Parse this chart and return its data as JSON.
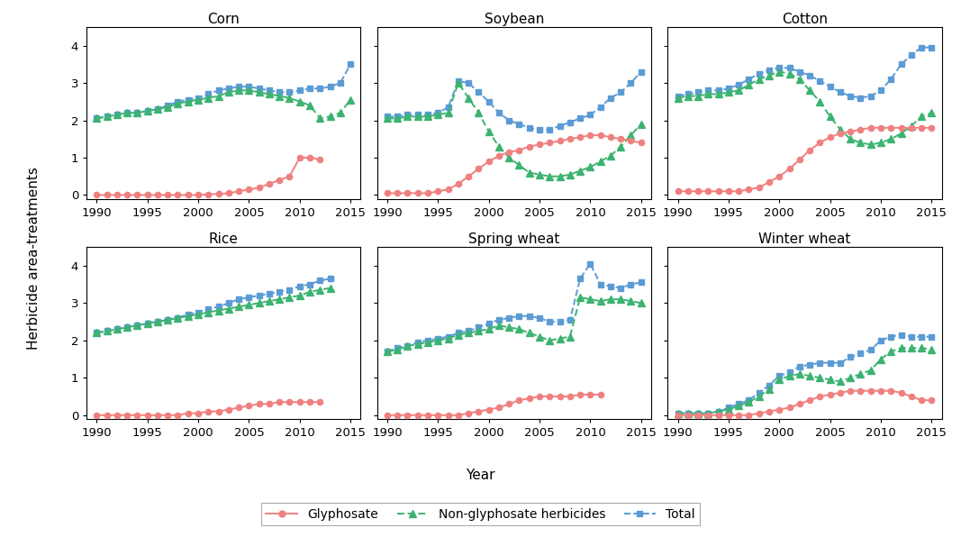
{
  "years": [
    1990,
    1991,
    1992,
    1993,
    1994,
    1995,
    1996,
    1997,
    1998,
    1999,
    2000,
    2001,
    2002,
    2003,
    2004,
    2005,
    2006,
    2007,
    2008,
    2009,
    2010,
    2011,
    2012,
    2013,
    2014,
    2015
  ],
  "data": {
    "Corn": {
      "glyphosate": [
        0.0,
        0.0,
        0.0,
        0.0,
        0.0,
        0.0,
        0.0,
        0.0,
        0.0,
        0.0,
        0.0,
        0.02,
        0.03,
        0.05,
        0.1,
        0.15,
        0.2,
        0.3,
        0.4,
        0.5,
        1.0,
        1.0,
        0.95,
        null,
        null,
        null
      ],
      "non_glyphosate": [
        2.05,
        2.1,
        2.15,
        2.2,
        2.2,
        2.25,
        2.3,
        2.35,
        2.45,
        2.5,
        2.55,
        2.6,
        2.65,
        2.75,
        2.8,
        2.8,
        2.75,
        2.7,
        2.65,
        2.6,
        2.5,
        2.4,
        2.05,
        2.1,
        2.2,
        2.55
      ],
      "total": [
        2.05,
        2.1,
        2.15,
        2.2,
        2.2,
        2.25,
        2.3,
        2.4,
        2.5,
        2.55,
        2.6,
        2.7,
        2.8,
        2.85,
        2.9,
        2.9,
        2.85,
        2.8,
        2.75,
        2.75,
        2.8,
        2.85,
        2.85,
        2.9,
        3.0,
        3.5
      ]
    },
    "Soybean": {
      "glyphosate": [
        0.05,
        0.05,
        0.05,
        0.05,
        0.05,
        0.1,
        0.15,
        0.3,
        0.5,
        0.7,
        0.9,
        1.05,
        1.15,
        1.2,
        1.3,
        1.35,
        1.4,
        1.45,
        1.5,
        1.55,
        1.6,
        1.6,
        1.55,
        1.5,
        1.45,
        1.4
      ],
      "non_glyphosate": [
        2.05,
        2.05,
        2.1,
        2.1,
        2.1,
        2.15,
        2.2,
        3.0,
        2.6,
        2.2,
        1.7,
        1.3,
        1.0,
        0.8,
        0.6,
        0.55,
        0.5,
        0.5,
        0.55,
        0.65,
        0.75,
        0.9,
        1.05,
        1.3,
        1.6,
        1.9
      ],
      "total": [
        2.1,
        2.1,
        2.15,
        2.15,
        2.15,
        2.2,
        2.35,
        3.05,
        3.0,
        2.75,
        2.5,
        2.2,
        2.0,
        1.9,
        1.8,
        1.75,
        1.75,
        1.85,
        1.95,
        2.05,
        2.15,
        2.35,
        2.6,
        2.75,
        3.0,
        3.3
      ]
    },
    "Cotton": {
      "glyphosate": [
        0.1,
        0.1,
        0.1,
        0.1,
        0.1,
        0.1,
        0.1,
        0.15,
        0.2,
        0.35,
        0.5,
        0.7,
        0.95,
        1.2,
        1.4,
        1.55,
        1.65,
        1.7,
        1.75,
        1.8,
        1.8,
        1.8,
        1.8,
        1.8,
        1.8,
        1.8
      ],
      "non_glyphosate": [
        2.6,
        2.65,
        2.65,
        2.7,
        2.7,
        2.75,
        2.8,
        2.95,
        3.1,
        3.2,
        3.3,
        3.25,
        3.1,
        2.8,
        2.5,
        2.1,
        1.75,
        1.5,
        1.4,
        1.35,
        1.4,
        1.5,
        1.65,
        1.85,
        2.1,
        2.2
      ],
      "total": [
        2.65,
        2.7,
        2.75,
        2.8,
        2.8,
        2.85,
        2.95,
        3.1,
        3.25,
        3.35,
        3.4,
        3.4,
        3.3,
        3.2,
        3.05,
        2.9,
        2.75,
        2.65,
        2.6,
        2.65,
        2.8,
        3.1,
        3.5,
        3.75,
        3.95,
        3.95
      ]
    },
    "Rice": {
      "glyphosate": [
        0.0,
        0.0,
        0.0,
        0.0,
        0.0,
        0.0,
        0.0,
        0.0,
        0.0,
        0.05,
        0.05,
        0.1,
        0.1,
        0.15,
        0.2,
        0.25,
        0.3,
        0.3,
        0.35,
        0.35,
        0.35,
        0.35,
        0.35,
        null,
        null,
        null
      ],
      "non_glyphosate": [
        2.2,
        2.25,
        2.3,
        2.35,
        2.4,
        2.45,
        2.5,
        2.55,
        2.6,
        2.65,
        2.7,
        2.75,
        2.8,
        2.85,
        2.9,
        2.95,
        3.0,
        3.05,
        3.1,
        3.15,
        3.2,
        3.3,
        3.35,
        3.4,
        null,
        null
      ],
      "total": [
        2.2,
        2.25,
        2.3,
        2.35,
        2.4,
        2.45,
        2.5,
        2.55,
        2.6,
        2.7,
        2.75,
        2.85,
        2.9,
        3.0,
        3.1,
        3.15,
        3.2,
        3.25,
        3.3,
        3.35,
        3.45,
        3.5,
        3.6,
        3.65,
        null,
        null
      ]
    },
    "Spring wheat": {
      "glyphosate": [
        0.0,
        0.0,
        0.0,
        0.0,
        0.0,
        0.0,
        0.0,
        0.0,
        0.05,
        0.1,
        0.15,
        0.2,
        0.3,
        0.4,
        0.45,
        0.5,
        0.5,
        0.5,
        0.5,
        0.55,
        0.55,
        0.55,
        null,
        null,
        null,
        null
      ],
      "non_glyphosate": [
        1.7,
        1.75,
        1.85,
        1.9,
        1.95,
        2.0,
        2.05,
        2.15,
        2.2,
        2.25,
        2.3,
        2.4,
        2.35,
        2.3,
        2.2,
        2.1,
        2.0,
        2.05,
        2.1,
        3.15,
        3.1,
        3.05,
        3.1,
        3.1,
        3.05,
        3.0
      ],
      "total": [
        1.7,
        1.8,
        1.85,
        1.95,
        2.0,
        2.05,
        2.1,
        2.2,
        2.25,
        2.35,
        2.45,
        2.55,
        2.6,
        2.65,
        2.65,
        2.6,
        2.5,
        2.5,
        2.55,
        3.65,
        4.05,
        3.5,
        3.45,
        3.4,
        3.5,
        3.55
      ]
    },
    "Winter wheat": {
      "glyphosate": [
        0.0,
        0.0,
        0.0,
        0.0,
        0.0,
        0.0,
        0.0,
        0.0,
        0.05,
        0.1,
        0.15,
        0.2,
        0.3,
        0.4,
        0.5,
        0.55,
        0.6,
        0.65,
        0.65,
        0.65,
        0.65,
        0.65,
        0.6,
        0.5,
        0.4,
        0.4
      ],
      "non_glyphosate": [
        0.05,
        0.05,
        0.05,
        0.05,
        0.1,
        0.15,
        0.25,
        0.35,
        0.5,
        0.7,
        0.95,
        1.05,
        1.1,
        1.05,
        1.0,
        0.95,
        0.9,
        1.0,
        1.1,
        1.2,
        1.5,
        1.7,
        1.8,
        1.8,
        1.8,
        1.75
      ],
      "total": [
        0.05,
        0.05,
        0.05,
        0.05,
        0.1,
        0.2,
        0.3,
        0.4,
        0.6,
        0.8,
        1.05,
        1.15,
        1.3,
        1.35,
        1.4,
        1.4,
        1.4,
        1.55,
        1.65,
        1.75,
        2.0,
        2.1,
        2.15,
        2.1,
        2.1,
        2.1
      ]
    }
  },
  "colors": {
    "glyphosate": "#F08080",
    "non_glyphosate": "#3CB371",
    "total": "#5B9BD5"
  },
  "ylabel": "Herbicide area-treatments",
  "xlabel": "Year",
  "ylim": [
    -0.1,
    4.5
  ],
  "yticks": [
    0,
    1,
    2,
    3,
    4
  ],
  "xticks": [
    1990,
    1995,
    2000,
    2005,
    2010,
    2015
  ],
  "crop_order": [
    "Corn",
    "Soybean",
    "Cotton",
    "Rice",
    "Spring wheat",
    "Winter wheat"
  ]
}
